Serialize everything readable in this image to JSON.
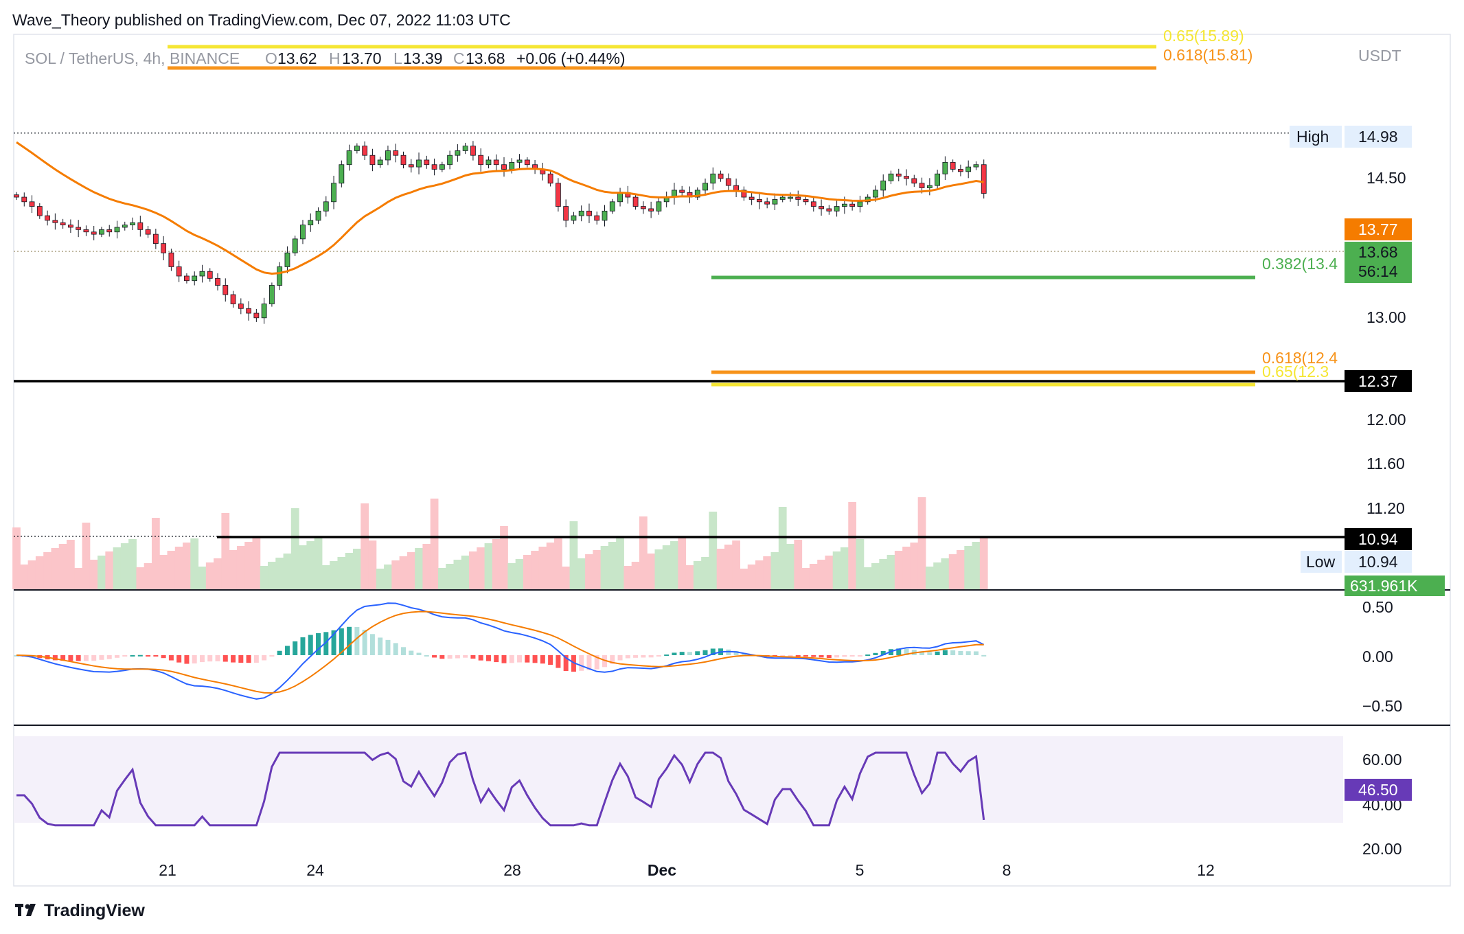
{
  "publisher_line": "Wave_Theory published on TradingView.com, Dec 07, 2022 11:03 UTC",
  "footer_logo": "TradingView",
  "ohlc": {
    "symbol": "SOL / TetherUS, 4h, BINANCE",
    "o_label": "O",
    "o": "13.62",
    "h_label": "H",
    "h": "13.70",
    "l_label": "L",
    "l": "13.39",
    "c_label": "C",
    "c": "13.68",
    "change": "+0.06 (+0.44%)"
  },
  "currency": "USDT",
  "colors": {
    "up": "#4caf50",
    "down": "#f23645",
    "ema": "#f57c00",
    "macd": "#2962ff",
    "signal": "#f57c00",
    "rsi": "#673ab7",
    "fib_orange": "#f7931a",
    "fib_yellow": "#f5e634",
    "support_green": "#4caf50"
  },
  "chart_data": {
    "type": "candlestick",
    "main": {
      "y_ticks": [
        "14.50",
        "13.00",
        "12.00",
        "11.60",
        "11.20"
      ],
      "y_tick_values": [
        14.5,
        13.0,
        12.0,
        11.6,
        11.2
      ],
      "high": {
        "label": "High",
        "value": "14.98"
      },
      "low": {
        "label": "Low",
        "value": "10.94"
      },
      "price_tags": {
        "ema": "13.77",
        "last": "13.68",
        "countdown": "56:14",
        "support": "12.37",
        "low_line": "10.94"
      },
      "volume_tag": "631.961K",
      "fib_levels": [
        {
          "label": "0.65(15.89)",
          "value": 15.89,
          "color": "yellow"
        },
        {
          "label": "0.618(15.81)",
          "value": 15.81,
          "color": "orange"
        },
        {
          "label": "0.382(13.4",
          "value": 13.4,
          "color": "green"
        },
        {
          "label": "0.618(12.4",
          "value": 12.4,
          "color": "orange"
        },
        {
          "label": "0.65(12.3",
          "value": 12.3,
          "color": "yellow"
        }
      ],
      "horizontal_lines": [
        12.37,
        10.94
      ]
    },
    "macd": {
      "y_ticks": [
        "0.50",
        "0.00",
        "−0.50"
      ],
      "y_tick_values": [
        0.5,
        0.0,
        -0.5
      ]
    },
    "rsi": {
      "y_ticks": [
        "60.00",
        "40.00",
        "20.00"
      ],
      "y_tick_values": [
        60,
        40,
        20
      ],
      "value_tag": "46.50"
    },
    "x_ticks": [
      "21",
      "24",
      "28",
      "Dec",
      "5",
      "8",
      "12"
    ]
  }
}
